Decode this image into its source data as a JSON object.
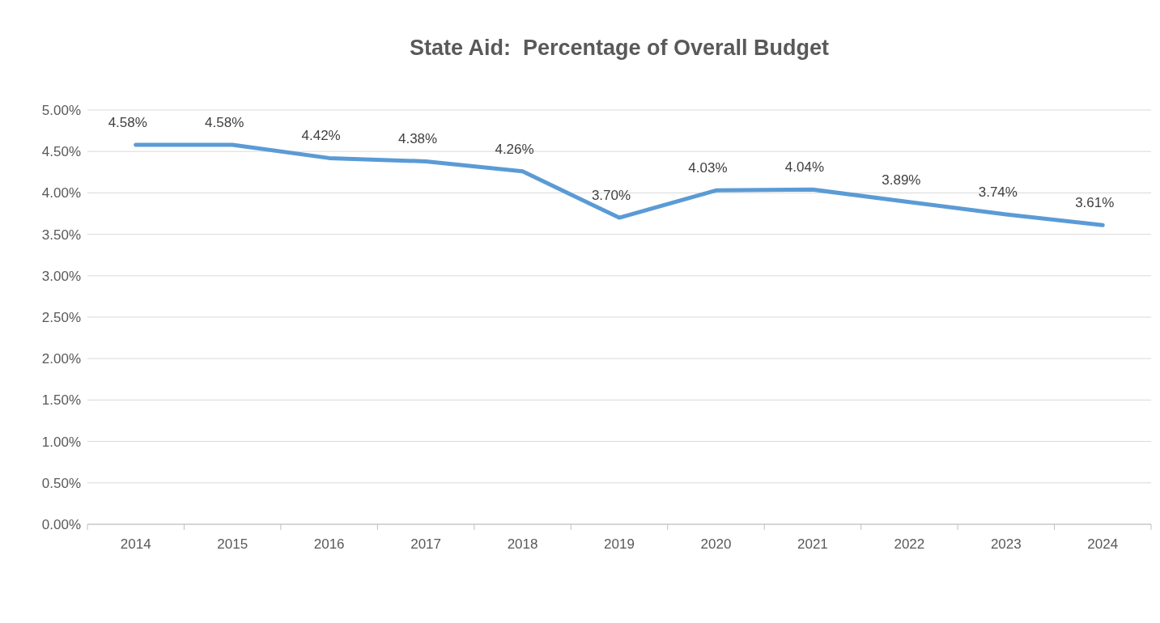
{
  "chart_data": {
    "type": "line",
    "title": "State Aid:  Percentage of Overall Budget",
    "categories": [
      "2014",
      "2015",
      "2016",
      "2017",
      "2018",
      "2019",
      "2020",
      "2021",
      "2022",
      "2023",
      "2024"
    ],
    "series": [
      {
        "color": "#5b9bd5",
        "values": [
          4.58,
          4.58,
          4.42,
          4.38,
          4.26,
          3.7,
          4.03,
          4.04,
          3.89,
          3.74,
          3.61
        ],
        "value_labels": [
          "4.58%",
          "4.58%",
          "4.42%",
          "4.38%",
          "4.26%",
          "3.70%",
          "4.03%",
          "4.04%",
          "3.89%",
          "3.74%",
          "3.61%"
        ]
      }
    ],
    "ylim": [
      0,
      5
    ],
    "yticks": [
      {
        "value": 0,
        "label": "0.00%"
      },
      {
        "value": 0.5,
        "label": "0.50%"
      },
      {
        "value": 1,
        "label": "1.00%"
      },
      {
        "value": 1.5,
        "label": "1.50%"
      },
      {
        "value": 2,
        "label": "2.00%"
      },
      {
        "value": 2.5,
        "label": "2.50%"
      },
      {
        "value": 3,
        "label": "3.00%"
      },
      {
        "value": 3.5,
        "label": "3.50%"
      },
      {
        "value": 4,
        "label": "4.00%"
      },
      {
        "value": 4.5,
        "label": "4.50%"
      },
      {
        "value": 5,
        "label": "5.00%"
      }
    ],
    "grid": "y",
    "marker": "none",
    "line_style": "solid"
  }
}
